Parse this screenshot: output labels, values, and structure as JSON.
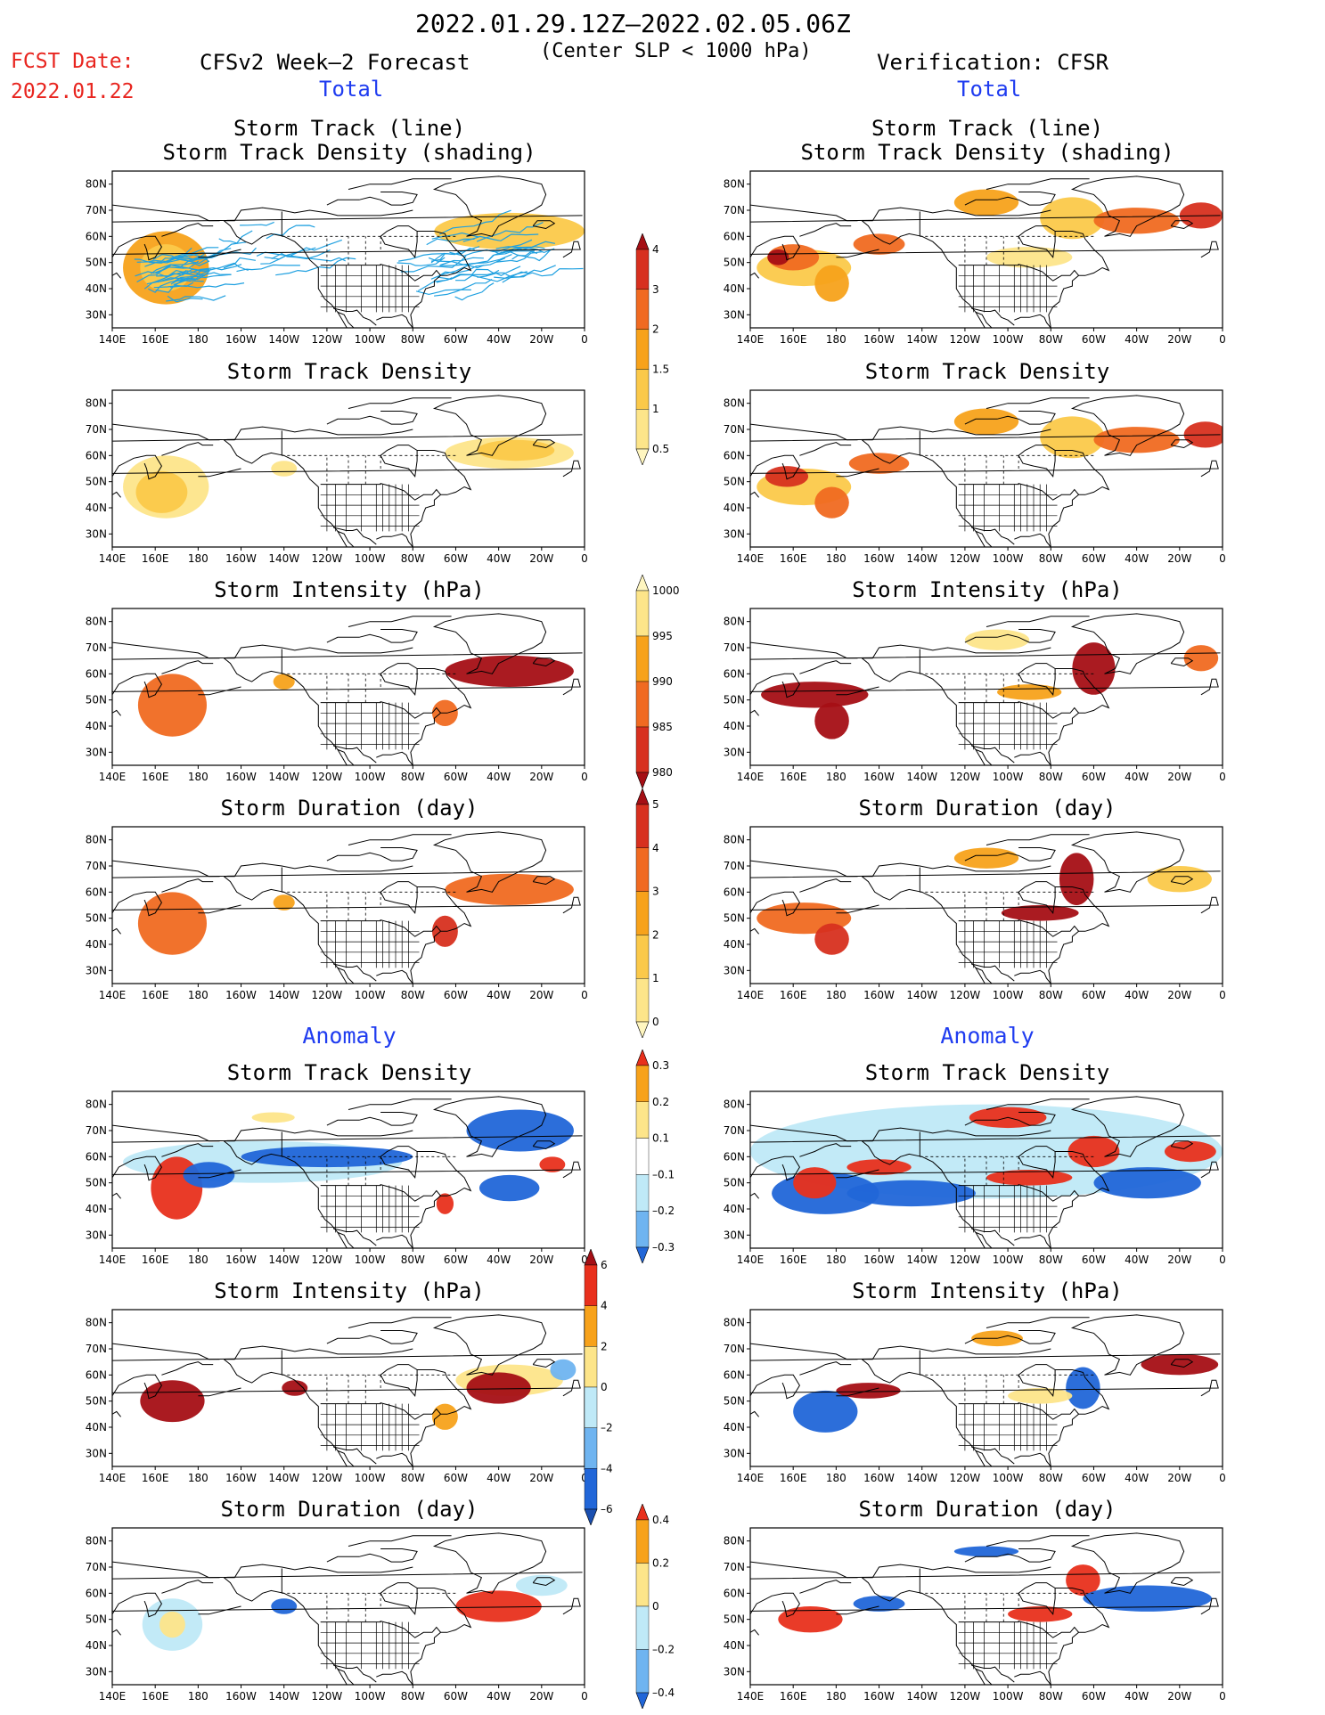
{
  "header": {
    "period": "2022.01.29.12Z—2022.02.05.06Z",
    "criterion": "(Center SLP < 1000 hPa)",
    "fcst_label": "FCST Date:",
    "fcst_date": "2022.01.22",
    "left_title": "CFSv2 Week—2 Forecast",
    "right_title": "Verification: CFSR",
    "total_label": "Total",
    "anomaly_label": "Anomaly"
  },
  "axes": {
    "lat_ticks": [
      "80N",
      "70N",
      "60N",
      "50N",
      "40N",
      "30N"
    ],
    "lon_ticks": [
      "140E",
      "160E",
      "180",
      "160W",
      "140W",
      "120W",
      "100W",
      "80W",
      "60W",
      "40W",
      "20W",
      "0"
    ]
  },
  "panel_titles": {
    "track_line": "Storm Track (line)",
    "track_density_shading": "Storm Track Density (shading)",
    "track_density": "Storm Track Density",
    "intensity": "Storm Intensity (hPa)",
    "duration": "Storm Duration (day)"
  },
  "colorbars": {
    "density_total": {
      "labels": [
        "4",
        "3",
        "2",
        "1.5",
        "1",
        "0.5"
      ],
      "colors": [
        "#a50f15",
        "#d7301f",
        "#f06a21",
        "#f7a21b",
        "#fbc94a",
        "#fde58a",
        "#fff6c0"
      ]
    },
    "intensity_total": {
      "labels": [
        "1000",
        "995",
        "990",
        "985",
        "980"
      ],
      "colors": [
        "#fff6c0",
        "#fde58a",
        "#f7a21b",
        "#f06a21",
        "#d7301f",
        "#a50f15"
      ]
    },
    "duration_total": {
      "labels": [
        "5",
        "4",
        "3",
        "2",
        "1",
        "0"
      ],
      "colors": [
        "#a50f15",
        "#d7301f",
        "#f06a21",
        "#f7a21b",
        "#fbc94a",
        "#fde58a",
        "#fff6c0"
      ]
    },
    "density_anom": {
      "labels": [
        "0.3",
        "0.2",
        "0.1",
        "–0.1",
        "–0.2",
        "–0.3"
      ],
      "colors": [
        "#e8301c",
        "#f7a21b",
        "#fde58a",
        "#ffffff",
        "#bfe9f7",
        "#6fb4f0",
        "#2166d8"
      ]
    },
    "intensity_anom": {
      "labels": [
        "6",
        "4",
        "2",
        "0",
        "–2",
        "–4",
        "–6"
      ],
      "colors": [
        "#a50f15",
        "#e8301c",
        "#f7a21b",
        "#fde58a",
        "#bfe9f7",
        "#6fb4f0",
        "#2166d8",
        "#1a4fb0"
      ]
    },
    "duration_anom": {
      "labels": [
        "0.4",
        "0.2",
        "0",
        "–0.2",
        "–0.4"
      ],
      "colors": [
        "#e8301c",
        "#f7a21b",
        "#fde58a",
        "#bfe9f7",
        "#6fb4f0",
        "#2166d8"
      ]
    }
  },
  "colors": {
    "track_line": "#1fa0e0",
    "coast": "#000000",
    "red_text": "#e8251f",
    "blue_text": "#1f3cf0"
  },
  "panels": [
    {
      "key": "fc_track",
      "blobs": [
        {
          "lon": 165,
          "lat": 48,
          "rlon": 20,
          "rlat": 14,
          "c": "#f7a21b"
        },
        {
          "lon": 165,
          "lat": 48,
          "rlon": 12,
          "rlat": 9,
          "c": "#fbc94a"
        },
        {
          "lon": -35,
          "lat": 62,
          "rlon": 35,
          "rlat": 7,
          "c": "#fbc94a"
        }
      ],
      "tracks": true
    },
    {
      "key": "ob_track",
      "blobs": [
        {
          "lon": 165,
          "lat": 48,
          "rlon": 22,
          "rlat": 7,
          "c": "#fbc94a"
        },
        {
          "lon": 160,
          "lat": 52,
          "rlon": 12,
          "rlat": 5,
          "c": "#f06a21"
        },
        {
          "lon": 153,
          "lat": 52,
          "rlon": 5,
          "rlat": 3,
          "c": "#a50f15"
        },
        {
          "lon": 178,
          "lat": 42,
          "rlon": 8,
          "rlat": 7,
          "c": "#f7a21b"
        },
        {
          "lon": -160,
          "lat": 57,
          "rlon": 12,
          "rlat": 4,
          "c": "#f06a21"
        },
        {
          "lon": -110,
          "lat": 73,
          "rlon": 15,
          "rlat": 5,
          "c": "#f7a21b"
        },
        {
          "lon": -70,
          "lat": 67,
          "rlon": 15,
          "rlat": 8,
          "c": "#fbc94a"
        },
        {
          "lon": -40,
          "lat": 66,
          "rlon": 20,
          "rlat": 5,
          "c": "#f06a21"
        },
        {
          "lon": -10,
          "lat": 68,
          "rlon": 10,
          "rlat": 5,
          "c": "#d7301f"
        },
        {
          "lon": -90,
          "lat": 52,
          "rlon": 20,
          "rlat": 4,
          "c": "#fde58a"
        }
      ],
      "tracks": false
    },
    {
      "key": "fc_density",
      "blobs": [
        {
          "lon": 165,
          "lat": 48,
          "rlon": 20,
          "rlat": 12,
          "c": "#fde58a"
        },
        {
          "lon": 163,
          "lat": 46,
          "rlon": 12,
          "rlat": 8,
          "c": "#fbc94a"
        },
        {
          "lon": -35,
          "lat": 61,
          "rlon": 30,
          "rlat": 6,
          "c": "#fde58a"
        },
        {
          "lon": -32,
          "lat": 62,
          "rlon": 18,
          "rlat": 4,
          "c": "#fbc94a"
        },
        {
          "lon": -140,
          "lat": 55,
          "rlon": 6,
          "rlat": 3,
          "c": "#fde58a"
        }
      ],
      "tracks": false
    },
    {
      "key": "ob_density",
      "blobs": [
        {
          "lon": 165,
          "lat": 48,
          "rlon": 22,
          "rlat": 7,
          "c": "#fbc94a"
        },
        {
          "lon": 157,
          "lat": 52,
          "rlon": 10,
          "rlat": 4,
          "c": "#d7301f"
        },
        {
          "lon": 178,
          "lat": 42,
          "rlon": 8,
          "rlat": 6,
          "c": "#f06a21"
        },
        {
          "lon": -160,
          "lat": 57,
          "rlon": 14,
          "rlat": 4,
          "c": "#f06a21"
        },
        {
          "lon": -110,
          "lat": 73,
          "rlon": 15,
          "rlat": 5,
          "c": "#f7a21b"
        },
        {
          "lon": -70,
          "lat": 67,
          "rlon": 15,
          "rlat": 8,
          "c": "#fbc94a"
        },
        {
          "lon": -40,
          "lat": 66,
          "rlon": 20,
          "rlat": 5,
          "c": "#f06a21"
        },
        {
          "lon": -8,
          "lat": 68,
          "rlon": 10,
          "rlat": 5,
          "c": "#d7301f"
        }
      ],
      "tracks": false
    },
    {
      "key": "fc_intensity",
      "blobs": [
        {
          "lon": 168,
          "lat": 48,
          "rlon": 16,
          "rlat": 12,
          "c": "#f06a21"
        },
        {
          "lon": -35,
          "lat": 61,
          "rlon": 30,
          "rlat": 6,
          "c": "#a50f15"
        },
        {
          "lon": -65,
          "lat": 45,
          "rlon": 6,
          "rlat": 5,
          "c": "#f06a21"
        },
        {
          "lon": -140,
          "lat": 57,
          "rlon": 5,
          "rlat": 3,
          "c": "#f7a21b"
        }
      ],
      "tracks": false
    },
    {
      "key": "ob_intensity",
      "blobs": [
        {
          "lon": 170,
          "lat": 52,
          "rlon": 25,
          "rlat": 5,
          "c": "#a50f15"
        },
        {
          "lon": 178,
          "lat": 42,
          "rlon": 8,
          "rlat": 7,
          "c": "#a50f15"
        },
        {
          "lon": -105,
          "lat": 73,
          "rlon": 15,
          "rlat": 4,
          "c": "#fde58a"
        },
        {
          "lon": -60,
          "lat": 62,
          "rlon": 10,
          "rlat": 10,
          "c": "#a50f15"
        },
        {
          "lon": -90,
          "lat": 53,
          "rlon": 15,
          "rlat": 3,
          "c": "#f7a21b"
        },
        {
          "lon": -10,
          "lat": 66,
          "rlon": 8,
          "rlat": 5,
          "c": "#f06a21"
        }
      ],
      "tracks": false
    },
    {
      "key": "fc_duration",
      "blobs": [
        {
          "lon": 168,
          "lat": 48,
          "rlon": 16,
          "rlat": 12,
          "c": "#f06a21"
        },
        {
          "lon": -35,
          "lat": 61,
          "rlon": 30,
          "rlat": 6,
          "c": "#f06a21"
        },
        {
          "lon": -65,
          "lat": 45,
          "rlon": 6,
          "rlat": 6,
          "c": "#d7301f"
        },
        {
          "lon": -140,
          "lat": 56,
          "rlon": 5,
          "rlat": 3,
          "c": "#f7a21b"
        }
      ],
      "tracks": false
    },
    {
      "key": "ob_duration",
      "blobs": [
        {
          "lon": 165,
          "lat": 50,
          "rlon": 22,
          "rlat": 6,
          "c": "#f06a21"
        },
        {
          "lon": 178,
          "lat": 42,
          "rlon": 8,
          "rlat": 6,
          "c": "#d7301f"
        },
        {
          "lon": -110,
          "lat": 73,
          "rlon": 15,
          "rlat": 4,
          "c": "#f7a21b"
        },
        {
          "lon": -85,
          "lat": 52,
          "rlon": 18,
          "rlat": 3,
          "c": "#a50f15"
        },
        {
          "lon": -68,
          "lat": 65,
          "rlon": 8,
          "rlat": 10,
          "c": "#a50f15"
        },
        {
          "lon": -20,
          "lat": 65,
          "rlon": 15,
          "rlat": 5,
          "c": "#fbc94a"
        }
      ],
      "tracks": false
    },
    {
      "key": "fc_density_anom",
      "blobs": [
        {
          "lon": -150,
          "lat": 58,
          "rlon": 65,
          "rlat": 8,
          "c": "#bfe9f7"
        },
        {
          "lon": 170,
          "lat": 48,
          "rlon": 12,
          "rlat": 12,
          "c": "#e8301c"
        },
        {
          "lon": -175,
          "lat": 53,
          "rlon": 12,
          "rlat": 5,
          "c": "#2166d8"
        },
        {
          "lon": -120,
          "lat": 60,
          "rlon": 40,
          "rlat": 4,
          "c": "#2166d8"
        },
        {
          "lon": -35,
          "lat": 48,
          "rlon": 14,
          "rlat": 5,
          "c": "#2166d8"
        },
        {
          "lon": -30,
          "lat": 70,
          "rlon": 25,
          "rlat": 8,
          "c": "#2166d8"
        },
        {
          "lon": -15,
          "lat": 57,
          "rlon": 6,
          "rlat": 3,
          "c": "#e8301c"
        },
        {
          "lon": -65,
          "lat": 42,
          "rlon": 4,
          "rlat": 4,
          "c": "#e8301c"
        },
        {
          "lon": -145,
          "lat": 75,
          "rlon": 10,
          "rlat": 2,
          "c": "#fde58a"
        }
      ],
      "tracks": false
    },
    {
      "key": "ob_density_anom",
      "blobs": [
        {
          "lon": -110,
          "lat": 62,
          "rlon": 110,
          "rlat": 18,
          "c": "#bfe9f7"
        },
        {
          "lon": 175,
          "lat": 46,
          "rlon": 25,
          "rlat": 8,
          "c": "#2166d8"
        },
        {
          "lon": 170,
          "lat": 50,
          "rlon": 10,
          "rlat": 6,
          "c": "#e8301c"
        },
        {
          "lon": -145,
          "lat": 46,
          "rlon": 30,
          "rlat": 5,
          "c": "#2166d8"
        },
        {
          "lon": -160,
          "lat": 56,
          "rlon": 15,
          "rlat": 3,
          "c": "#e8301c"
        },
        {
          "lon": -100,
          "lat": 75,
          "rlon": 18,
          "rlat": 4,
          "c": "#e8301c"
        },
        {
          "lon": -60,
          "lat": 62,
          "rlon": 12,
          "rlat": 6,
          "c": "#e8301c"
        },
        {
          "lon": -35,
          "lat": 50,
          "rlon": 25,
          "rlat": 6,
          "c": "#2166d8"
        },
        {
          "lon": -15,
          "lat": 62,
          "rlon": 12,
          "rlat": 4,
          "c": "#e8301c"
        },
        {
          "lon": -90,
          "lat": 52,
          "rlon": 20,
          "rlat": 3,
          "c": "#e8301c"
        }
      ],
      "tracks": false
    },
    {
      "key": "fc_intensity_anom",
      "blobs": [
        {
          "lon": 168,
          "lat": 50,
          "rlon": 15,
          "rlat": 8,
          "c": "#a50f15"
        },
        {
          "lon": -35,
          "lat": 58,
          "rlon": 25,
          "rlat": 6,
          "c": "#fde58a"
        },
        {
          "lon": -40,
          "lat": 55,
          "rlon": 15,
          "rlat": 6,
          "c": "#a50f15"
        },
        {
          "lon": -65,
          "lat": 44,
          "rlon": 6,
          "rlat": 5,
          "c": "#f7a21b"
        },
        {
          "lon": -135,
          "lat": 55,
          "rlon": 6,
          "rlat": 3,
          "c": "#a50f15"
        },
        {
          "lon": -10,
          "lat": 62,
          "rlon": 6,
          "rlat": 4,
          "c": "#6fb4f0"
        }
      ],
      "tracks": false
    },
    {
      "key": "ob_intensity_anom",
      "blobs": [
        {
          "lon": 175,
          "lat": 46,
          "rlon": 15,
          "rlat": 8,
          "c": "#2166d8"
        },
        {
          "lon": -165,
          "lat": 54,
          "rlon": 15,
          "rlat": 3,
          "c": "#a50f15"
        },
        {
          "lon": -105,
          "lat": 74,
          "rlon": 12,
          "rlat": 3,
          "c": "#f7a21b"
        },
        {
          "lon": -65,
          "lat": 55,
          "rlon": 8,
          "rlat": 8,
          "c": "#2166d8"
        },
        {
          "lon": -20,
          "lat": 64,
          "rlon": 18,
          "rlat": 4,
          "c": "#a50f15"
        },
        {
          "lon": -85,
          "lat": 52,
          "rlon": 15,
          "rlat": 3,
          "c": "#fde58a"
        }
      ],
      "tracks": false
    },
    {
      "key": "fc_duration_anom",
      "blobs": [
        {
          "lon": 168,
          "lat": 48,
          "rlon": 14,
          "rlat": 10,
          "c": "#bfe9f7"
        },
        {
          "lon": 168,
          "lat": 48,
          "rlon": 6,
          "rlat": 5,
          "c": "#fde58a"
        },
        {
          "lon": -40,
          "lat": 55,
          "rlon": 20,
          "rlat": 6,
          "c": "#e8301c"
        },
        {
          "lon": -20,
          "lat": 63,
          "rlon": 12,
          "rlat": 4,
          "c": "#bfe9f7"
        },
        {
          "lon": -140,
          "lat": 55,
          "rlon": 6,
          "rlat": 3,
          "c": "#2166d8"
        }
      ],
      "tracks": false
    },
    {
      "key": "ob_duration_anom",
      "blobs": [
        {
          "lon": 168,
          "lat": 50,
          "rlon": 15,
          "rlat": 5,
          "c": "#e8301c"
        },
        {
          "lon": -160,
          "lat": 56,
          "rlon": 12,
          "rlat": 3,
          "c": "#2166d8"
        },
        {
          "lon": -110,
          "lat": 76,
          "rlon": 15,
          "rlat": 2,
          "c": "#2166d8"
        },
        {
          "lon": -65,
          "lat": 65,
          "rlon": 8,
          "rlat": 6,
          "c": "#e8301c"
        },
        {
          "lon": -85,
          "lat": 52,
          "rlon": 15,
          "rlat": 3,
          "c": "#e8301c"
        },
        {
          "lon": -35,
          "lat": 58,
          "rlon": 30,
          "rlat": 5,
          "c": "#2166d8"
        }
      ],
      "tracks": false
    }
  ]
}
